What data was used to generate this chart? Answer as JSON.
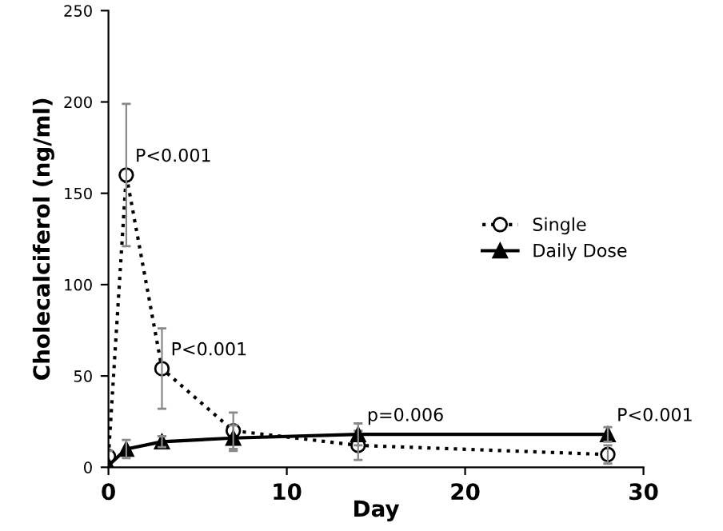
{
  "chart_data": {
    "type": "line",
    "xlabel": "Day",
    "ylabel": "Cholecalciferol (ng/ml)",
    "x": [
      0,
      1,
      3,
      7,
      14,
      28
    ],
    "series": [
      {
        "name": "Single",
        "color": "#000000",
        "values": [
          6,
          160,
          54,
          20,
          12,
          7
        ],
        "errors": [
          3,
          39,
          22,
          10,
          8,
          5
        ],
        "marker": "circle",
        "line_style": "dotted"
      },
      {
        "name": "Daily Dose",
        "color": "#000000",
        "values": [
          1,
          10,
          14,
          16,
          18,
          18
        ],
        "errors": [
          null,
          5,
          3,
          7,
          6,
          4
        ],
        "marker": "triangle",
        "line_style": "solid"
      }
    ],
    "annotations": [
      {
        "text": "P<0.001",
        "x": 1,
        "y": 160
      },
      {
        "text": "P<0.001",
        "x": 3,
        "y": 54
      },
      {
        "text": "p=0.006",
        "x": 14,
        "y": 18
      },
      {
        "text": "P<0.001",
        "x": 28,
        "y": 18
      }
    ],
    "xlim": [
      0,
      30
    ],
    "ylim": [
      0,
      250
    ],
    "xticks": [
      0,
      10,
      20,
      30
    ],
    "yticks": [
      0,
      50,
      100,
      150,
      200,
      250
    ],
    "grid": false,
    "legend": "center right"
  }
}
